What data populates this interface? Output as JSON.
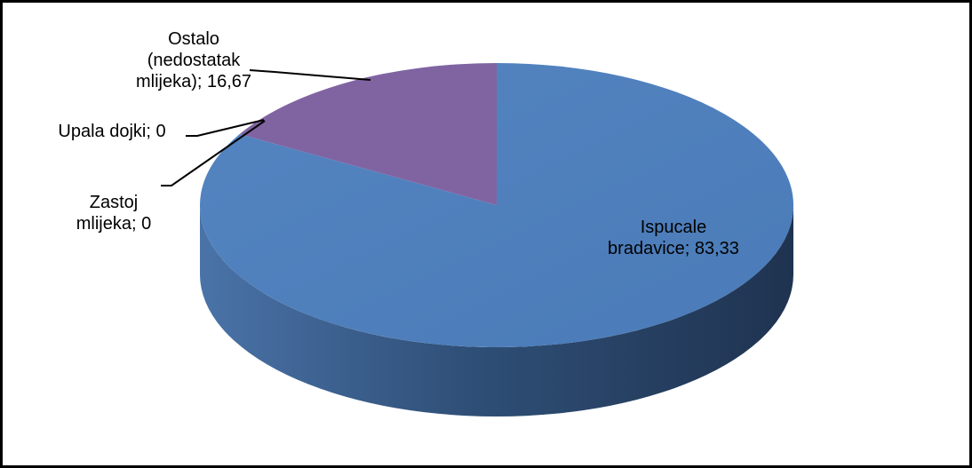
{
  "chart_data": {
    "type": "pie",
    "style": "3d",
    "labels": [
      "Ispucale bradavice",
      "Zastoj mlijeka",
      "Upala dojki",
      "Ostalo (nedostatak mlijeka)"
    ],
    "values": [
      83.33,
      0,
      0,
      16.67
    ],
    "colors": [
      "#4f81bd",
      "#4f81bd",
      "#4f81bd",
      "#8064a2"
    ],
    "data_labels": [
      [
        "Ispucale",
        "bradavice; 83,33"
      ],
      [
        "Zastoj",
        "mlijeka; 0"
      ],
      [
        "Upala dojki; 0"
      ],
      [
        "Ostalo",
        "(nedostatak",
        "mlijeka); 16,67"
      ]
    ],
    "legend": "none",
    "title": ""
  }
}
